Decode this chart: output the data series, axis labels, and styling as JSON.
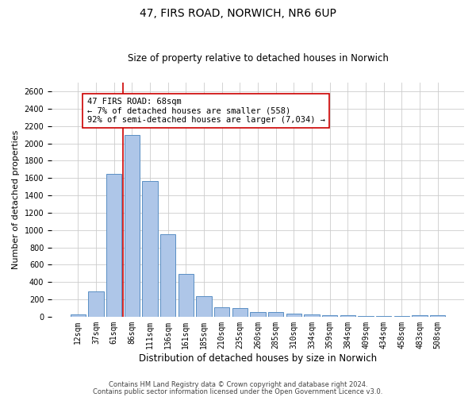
{
  "title": "47, FIRS ROAD, NORWICH, NR6 6UP",
  "subtitle": "Size of property relative to detached houses in Norwich",
  "xlabel": "Distribution of detached houses by size in Norwich",
  "ylabel": "Number of detached properties",
  "categories": [
    "12sqm",
    "37sqm",
    "61sqm",
    "86sqm",
    "111sqm",
    "136sqm",
    "161sqm",
    "185sqm",
    "210sqm",
    "235sqm",
    "260sqm",
    "285sqm",
    "310sqm",
    "334sqm",
    "359sqm",
    "384sqm",
    "409sqm",
    "434sqm",
    "458sqm",
    "483sqm",
    "508sqm"
  ],
  "values": [
    25,
    290,
    1650,
    2100,
    1570,
    950,
    490,
    235,
    110,
    100,
    50,
    50,
    35,
    30,
    20,
    20,
    10,
    10,
    5,
    20,
    20
  ],
  "bar_color": "#aec6e8",
  "bar_edgecolor": "#5a8fc4",
  "vline_x": 2.5,
  "vline_color": "#cc0000",
  "annotation_text": "47 FIRS ROAD: 68sqm\n← 7% of detached houses are smaller (558)\n92% of semi-detached houses are larger (7,034) →",
  "annotation_box_color": "#ffffff",
  "annotation_box_edgecolor": "#cc0000",
  "ylim": [
    0,
    2700
  ],
  "yticks": [
    0,
    200,
    400,
    600,
    800,
    1000,
    1200,
    1400,
    1600,
    1800,
    2000,
    2200,
    2400,
    2600
  ],
  "footnote1": "Contains HM Land Registry data © Crown copyright and database right 2024.",
  "footnote2": "Contains public sector information licensed under the Open Government Licence v3.0.",
  "background_color": "#ffffff",
  "grid_color": "#cccccc",
  "title_fontsize": 10,
  "subtitle_fontsize": 8.5,
  "ylabel_fontsize": 8,
  "xlabel_fontsize": 8.5,
  "tick_fontsize": 7,
  "annot_fontsize": 7.5,
  "footnote_fontsize": 6
}
